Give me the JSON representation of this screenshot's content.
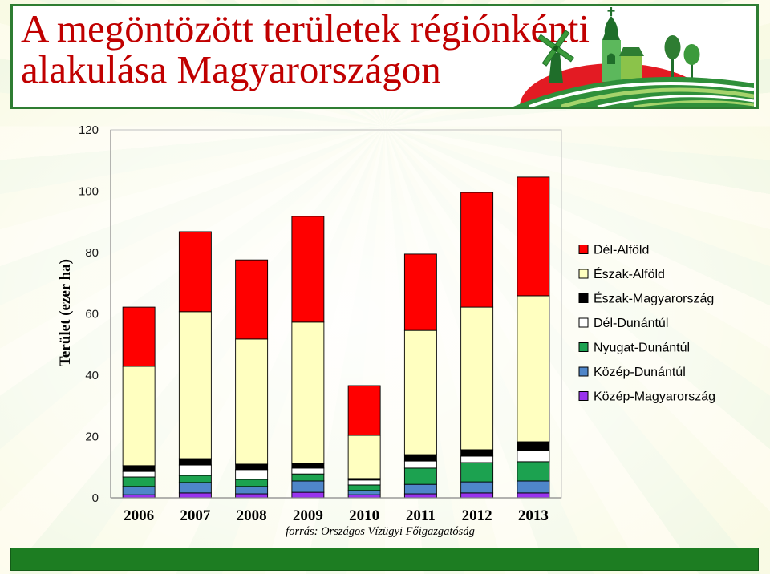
{
  "chart_data": {
    "type": "bar",
    "stacked": true,
    "title": "A megöntözött területek régiónkénti alakulása Magyarországon",
    "xlabel": "",
    "ylabel": "Terület (ezer ha)",
    "categories": [
      "2006",
      "2007",
      "2008",
      "2009",
      "2010",
      "2011",
      "2012",
      "2013"
    ],
    "ylim": [
      0,
      120
    ],
    "yticks": [
      0,
      20,
      40,
      60,
      80,
      100,
      120
    ],
    "grid": false,
    "legend_position": "right",
    "series": [
      {
        "name": "Dél-Alföld",
        "color": "#ff0000",
        "values": [
          19.3,
          26.1,
          25.8,
          34.5,
          16.2,
          24.9,
          37.4,
          38.7
        ]
      },
      {
        "name": "Észak-Alföld",
        "color": "#ffffc0",
        "values": [
          32.4,
          47.9,
          40.8,
          46.1,
          14.1,
          40.5,
          46.5,
          47.6
        ]
      },
      {
        "name": "Észak-Magyarország",
        "color": "#000000",
        "values": [
          1.9,
          2.1,
          1.8,
          1.5,
          0.5,
          2.1,
          2.1,
          2.9
        ]
      },
      {
        "name": "Dél-Dunántúl",
        "color": "#ffffff",
        "values": [
          1.8,
          3.4,
          3.2,
          1.9,
          1.6,
          2.3,
          2.1,
          3.6
        ]
      },
      {
        "name": "Nyugat-Dunántúl",
        "color": "#1ca250",
        "values": [
          3.1,
          2.3,
          2.3,
          2.3,
          1.8,
          5.3,
          6.3,
          6.3
        ]
      },
      {
        "name": "Közép-Dunántúl",
        "color": "#4f86c9",
        "values": [
          2.7,
          3.4,
          2.4,
          3.7,
          1.4,
          3.1,
          3.6,
          3.9
        ]
      },
      {
        "name": "Közép-Magyarország",
        "color": "#9933ee",
        "values": [
          1.0,
          1.6,
          1.3,
          1.8,
          1.0,
          1.3,
          1.6,
          1.6
        ]
      }
    ],
    "source": "forrás: Országos Vízügyi Főigazgatóság"
  },
  "colors": {
    "title": "#c00000",
    "frame": "#2e7d32",
    "footer_bar": "#1d7d22"
  }
}
